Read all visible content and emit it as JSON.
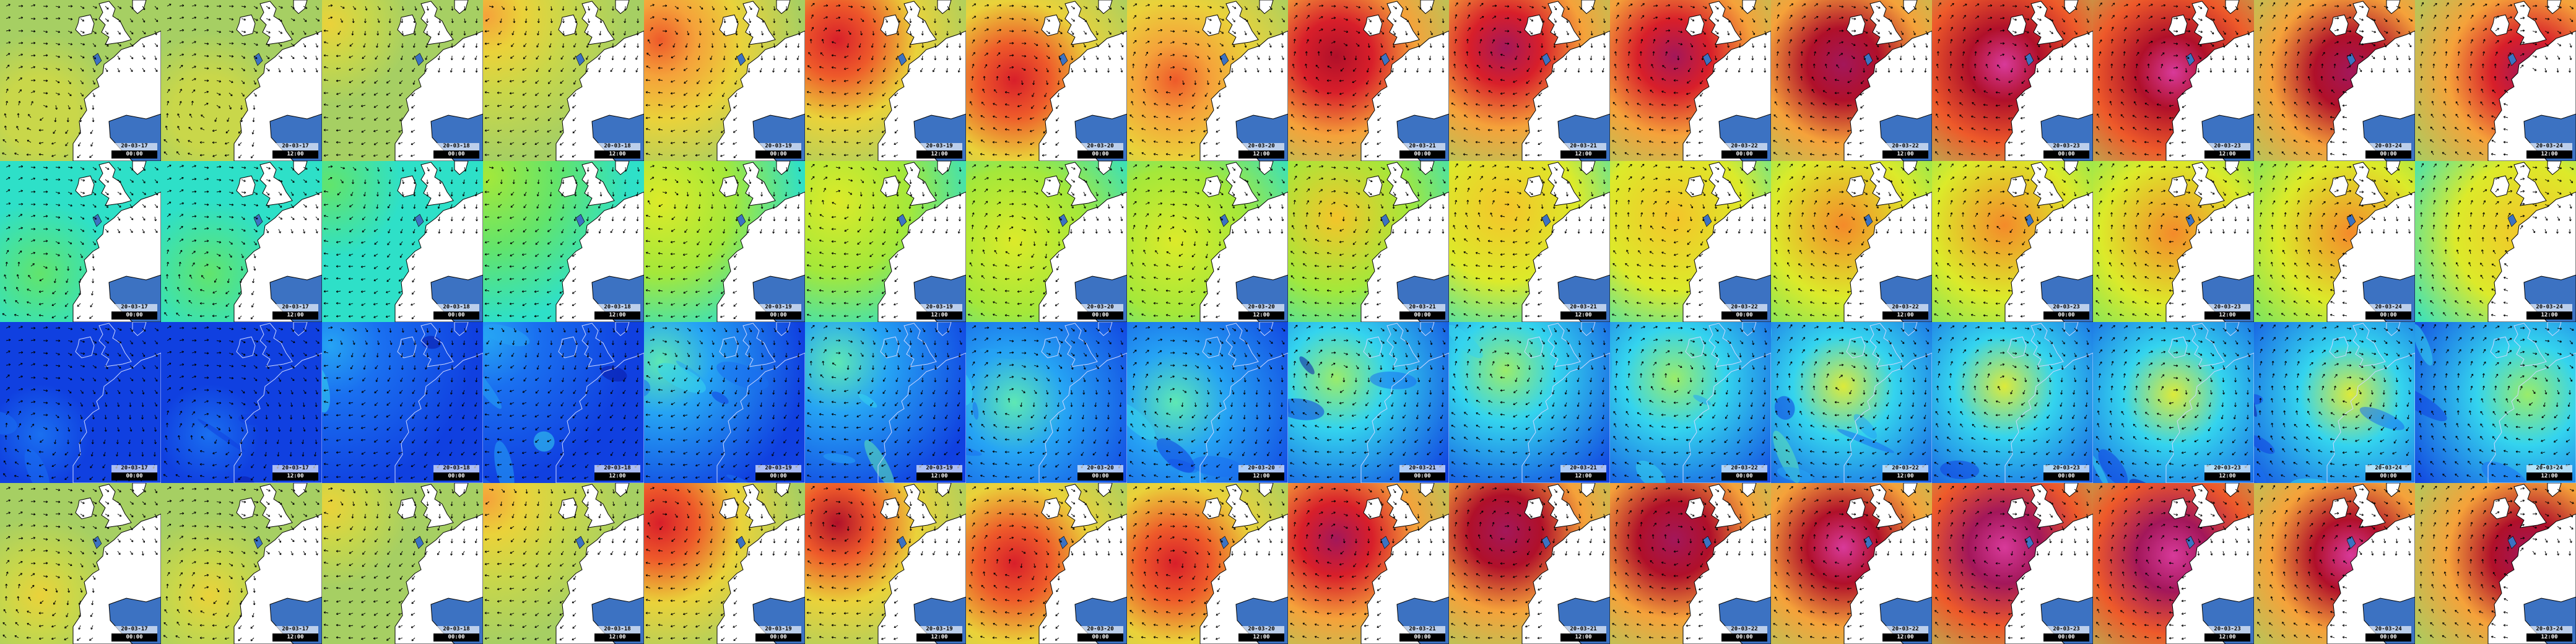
{
  "palette": {
    "wave_height": [
      "#4aa3e0",
      "#7cc7a0",
      "#a6cf63",
      "#c9d74a",
      "#ead23a",
      "#f5a23a",
      "#ee5a2a",
      "#d81f2a",
      "#b0102a",
      "#a3175a",
      "#d83a9a"
    ],
    "wave_period": [
      "#14c8f0",
      "#2ee0c8",
      "#62e46c",
      "#a4e83a",
      "#dcea2a",
      "#f4c42a",
      "#f48a2a",
      "#e44e2a"
    ],
    "wind_speed": [
      "#0a1aa8",
      "#1040e0",
      "#1a70f0",
      "#26a4f4",
      "#34d4ee",
      "#5ee8b4",
      "#9aec6a",
      "#dcea3a",
      "#f6c42a"
    ],
    "land": "#ffffff",
    "sea_inland": "#3c72c2",
    "coast": "#000000",
    "arrow": "#000000",
    "stamp_time_bg": "#000000",
    "stamp_time_fg": "#ffffff"
  },
  "map_layers": [
    "wave-height",
    "wave-period",
    "wind-speed",
    "wave-height-alt"
  ],
  "icons": {
    "direction_arrow": "arrow-icon"
  },
  "frames": [
    {
      "date": "20-03-17",
      "time": "00:00",
      "storm": 0.3,
      "lowX": 0.25,
      "lowY": 0.7
    },
    {
      "date": "20-03-17",
      "time": "12:00",
      "storm": 0.3,
      "lowX": 0.3,
      "lowY": 0.7
    },
    {
      "date": "20-03-18",
      "time": "00:00",
      "storm": 0.35,
      "lowX": 0.05,
      "lowY": 0.15
    },
    {
      "date": "20-03-18",
      "time": "12:00",
      "storm": 0.45,
      "lowX": 0.02,
      "lowY": 0.1
    },
    {
      "date": "20-03-19",
      "time": "00:00",
      "storm": 0.6,
      "lowX": 0.1,
      "lowY": 0.25
    },
    {
      "date": "20-03-19",
      "time": "12:00",
      "storm": 0.7,
      "lowX": 0.2,
      "lowY": 0.25
    },
    {
      "date": "20-03-20",
      "time": "00:00",
      "storm": 0.65,
      "lowX": 0.3,
      "lowY": 0.5
    },
    {
      "date": "20-03-20",
      "time": "12:00",
      "storm": 0.6,
      "lowX": 0.3,
      "lowY": 0.5
    },
    {
      "date": "20-03-21",
      "time": "00:00",
      "storm": 0.8,
      "lowX": 0.3,
      "lowY": 0.35
    },
    {
      "date": "20-03-21",
      "time": "12:00",
      "storm": 0.85,
      "lowX": 0.35,
      "lowY": 0.3
    },
    {
      "date": "20-03-22",
      "time": "00:00",
      "storm": 0.85,
      "lowX": 0.4,
      "lowY": 0.35
    },
    {
      "date": "20-03-22",
      "time": "12:00",
      "storm": 0.9,
      "lowX": 0.45,
      "lowY": 0.4
    },
    {
      "date": "20-03-23",
      "time": "00:00",
      "storm": 0.95,
      "lowX": 0.45,
      "lowY": 0.4
    },
    {
      "date": "20-03-23",
      "time": "12:00",
      "storm": 0.95,
      "lowX": 0.5,
      "lowY": 0.45
    },
    {
      "date": "20-03-24",
      "time": "00:00",
      "storm": 0.9,
      "lowX": 0.6,
      "lowY": 0.45
    },
    {
      "date": "20-03-24",
      "time": "12:00",
      "storm": 0.85,
      "lowX": 0.7,
      "lowY": 0.45
    }
  ]
}
